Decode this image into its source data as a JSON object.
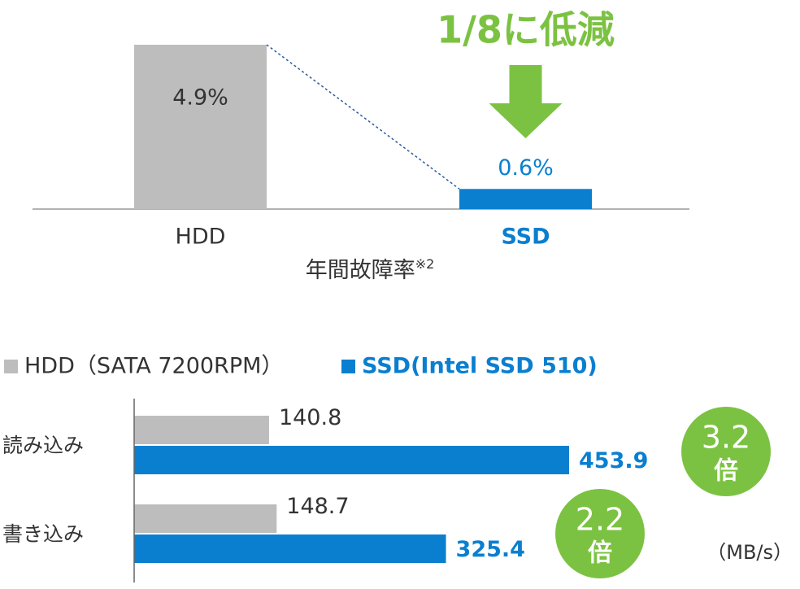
{
  "chart_data": [
    {
      "type": "bar",
      "title": "年間故障率",
      "title_note": "※2",
      "annotation": "1/8に低減",
      "categories": [
        "HDD",
        "SSD"
      ],
      "values": [
        4.9,
        0.6
      ],
      "value_labels": [
        "4.9%",
        "0.6%"
      ],
      "colors": [
        "#bdbdbd",
        "#0a7fd0"
      ],
      "label_colors": [
        "#333333",
        "#0a7fd0"
      ],
      "annotation_color": "#7cc242"
    },
    {
      "type": "hbar",
      "unit": "（MB/s）",
      "categories": [
        "読み込み",
        "書き込み"
      ],
      "series": [
        {
          "name": "HDD（SATA 7200RPM）",
          "color": "#bdbdbd",
          "label_color": "#333333",
          "values": [
            140.8,
            148.7
          ]
        },
        {
          "name": "SSD(Intel SSD 510)",
          "color": "#0a7fd0",
          "label_color": "#0a7fd0",
          "values": [
            453.9,
            325.4
          ]
        }
      ],
      "ratio_labels": [
        [
          "3.2",
          "倍"
        ],
        [
          "2.2",
          "倍"
        ]
      ],
      "ratio_color": "#7cc242"
    }
  ]
}
